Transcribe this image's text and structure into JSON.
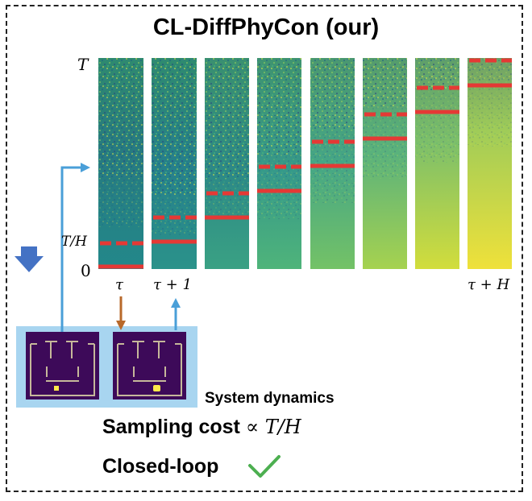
{
  "title": "CL-DiffPhyCon (our)",
  "axis": {
    "top_label": "T",
    "mid_label": "T/H",
    "bottom_label": "0"
  },
  "time_labels": {
    "tau": "τ",
    "tau_plus_1": "τ + 1",
    "tau_plus_H": "τ + H"
  },
  "system_dynamics_label": "System dynamics",
  "sampling_cost": {
    "prefix": "Sampling cost",
    "expr": "∝ T/H"
  },
  "closed_loop": {
    "label": "Closed-loop",
    "check_icon": "check-icon",
    "check_color": "#4caf50"
  },
  "colors": {
    "solid_line": "#e53935",
    "dashed_line": "#e53935",
    "arrow_blue": "#4a9fd8",
    "arrow_brown": "#b8692b",
    "down_arrow": "#4472c4",
    "panel_bg": "#a8d5f0",
    "maze_bg": "#3d0a59"
  },
  "columns_count": 8
}
